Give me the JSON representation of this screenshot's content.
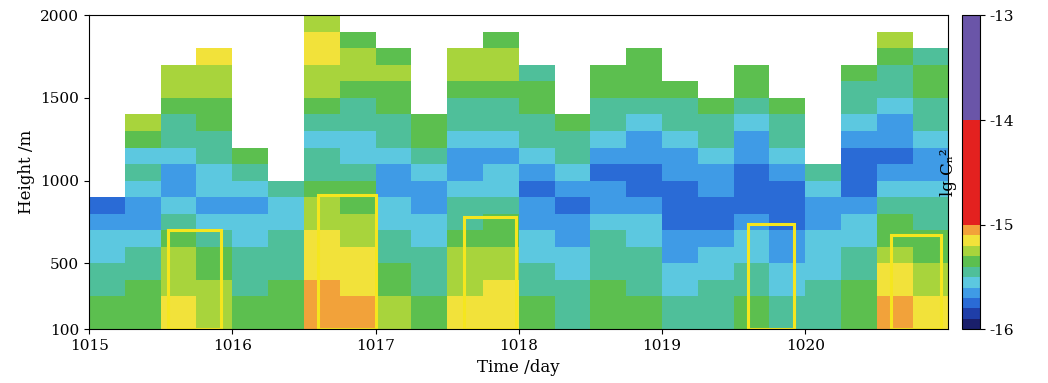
{
  "chart_data": {
    "type": "heatmap",
    "xlabel": "Time /day",
    "ylabel": "Height /m",
    "xlim": [
      1015,
      1021
    ],
    "ylim": [
      100,
      2000
    ],
    "xticks": [
      1015,
      1016,
      1017,
      1018,
      1019,
      1020
    ],
    "yticks": [
      100,
      500,
      1000,
      1500,
      2000
    ],
    "colorbar_label": "lg Cₙ²",
    "clim": [
      -16,
      -13
    ],
    "colorbar_ticks": [
      -16,
      -15,
      -14,
      -13
    ],
    "x_edges": [
      1015,
      1015.25,
      1015.5,
      1015.75,
      1016,
      1016.25,
      1016.5,
      1016.75,
      1017,
      1017.25,
      1017.5,
      1017.75,
      1018,
      1018.25,
      1018.5,
      1018.75,
      1019,
      1019.25,
      1019.5,
      1019.75,
      1020,
      1020.25,
      1020.5,
      1020.75,
      1021
    ],
    "y_edges": [
      100,
      200,
      300,
      400,
      500,
      600,
      700,
      800,
      900,
      1000,
      1100,
      1200,
      1300,
      1400,
      1500,
      1600,
      1700,
      1800,
      1900,
      2000
    ],
    "cells": [
      [
        -15.4,
        -15.4,
        -15.5,
        -15.5,
        -15.6,
        -15.6,
        -15.7,
        -15.8,
        null,
        null,
        null,
        null,
        null,
        null,
        null,
        null,
        null,
        null,
        null
      ],
      [
        -15.4,
        -15.4,
        -15.4,
        -15.5,
        -15.5,
        -15.6,
        -15.7,
        -15.7,
        -15.6,
        -15.5,
        -15.6,
        -15.4,
        -15.3,
        null,
        null,
        null,
        null,
        null,
        null
      ],
      [
        -15.2,
        -15.2,
        -15.3,
        -15.3,
        -15.3,
        -15.4,
        -15.5,
        -15.6,
        -15.7,
        -15.7,
        -15.6,
        -15.5,
        -15.5,
        -15.4,
        -15.3,
        -15.3,
        null,
        null,
        null
      ],
      [
        -15.3,
        -15.3,
        -15.3,
        -15.4,
        -15.4,
        -15.5,
        -15.6,
        -15.7,
        -15.6,
        -15.6,
        -15.5,
        -15.5,
        -15.4,
        -15.4,
        -15.3,
        -15.3,
        -15.2,
        null,
        null
      ],
      [
        -15.4,
        -15.4,
        -15.5,
        -15.5,
        -15.5,
        -15.6,
        -15.6,
        -15.7,
        -15.6,
        -15.5,
        -15.4,
        null,
        null,
        null,
        null,
        null,
        null,
        null,
        null
      ],
      [
        -15.4,
        -15.4,
        -15.4,
        -15.5,
        -15.5,
        -15.5,
        -15.6,
        -15.6,
        -15.5,
        null,
        null,
        null,
        null,
        null,
        null,
        null,
        null,
        null,
        null
      ],
      [
        -15.1,
        -15.1,
        -15.1,
        -15.2,
        -15.2,
        -15.2,
        -15.3,
        -15.3,
        -15.4,
        -15.5,
        -15.5,
        -15.6,
        -15.5,
        -15.4,
        -15.3,
        -15.3,
        -15.2,
        -15.2,
        -15.3
      ],
      [
        -15.1,
        -15.1,
        -15.2,
        -15.2,
        -15.2,
        -15.3,
        -15.3,
        -15.4,
        -15.4,
        -15.5,
        -15.6,
        -15.6,
        -15.5,
        -15.5,
        -15.4,
        -15.3,
        -15.3,
        -15.4,
        null
      ],
      [
        -15.3,
        -15.3,
        -15.4,
        -15.4,
        -15.5,
        -15.5,
        -15.6,
        -15.6,
        -15.7,
        -15.7,
        -15.6,
        -15.5,
        -15.5,
        -15.4,
        -15.4,
        -15.3,
        -15.4,
        null,
        null
      ],
      [
        -15.4,
        -15.4,
        -15.5,
        -15.5,
        -15.5,
        -15.6,
        -15.6,
        -15.7,
        -15.7,
        -15.6,
        -15.5,
        -15.4,
        -15.4,
        null,
        null,
        null,
        null,
        null,
        null
      ],
      [
        -15.2,
        -15.2,
        -15.3,
        -15.3,
        -15.3,
        -15.4,
        -15.5,
        -15.5,
        -15.6,
        -15.7,
        -15.7,
        -15.6,
        -15.5,
        -15.5,
        -15.4,
        -15.3,
        -15.3,
        null,
        null
      ],
      [
        -15.2,
        -15.2,
        -15.2,
        -15.3,
        -15.3,
        -15.4,
        -15.4,
        -15.5,
        -15.6,
        -15.6,
        -15.7,
        -15.6,
        -15.5,
        -15.5,
        -15.4,
        -15.3,
        -15.3,
        -15.4,
        null
      ],
      [
        -15.4,
        -15.4,
        -15.5,
        -15.5,
        -15.6,
        -15.6,
        -15.7,
        -15.7,
        -15.8,
        -15.7,
        -15.6,
        -15.5,
        -15.5,
        -15.4,
        -15.4,
        -15.5,
        null,
        null,
        null
      ],
      [
        -15.5,
        -15.5,
        -15.5,
        -15.6,
        -15.6,
        -15.7,
        -15.7,
        -15.8,
        -15.7,
        -15.6,
        -15.5,
        -15.5,
        -15.4,
        null,
        null,
        null,
        null,
        null,
        null
      ],
      [
        -15.4,
        -15.4,
        -15.4,
        -15.5,
        -15.5,
        -15.5,
        -15.6,
        -15.7,
        -15.7,
        -15.8,
        -15.7,
        -15.6,
        -15.5,
        -15.5,
        -15.4,
        -15.4,
        null,
        null,
        null
      ],
      [
        -15.4,
        -15.4,
        -15.5,
        -15.5,
        -15.5,
        -15.6,
        -15.6,
        -15.7,
        -15.8,
        -15.8,
        -15.7,
        -15.7,
        -15.6,
        -15.5,
        -15.4,
        -15.4,
        -15.4,
        null,
        null
      ],
      [
        -15.5,
        -15.5,
        -15.6,
        -15.6,
        -15.7,
        -15.7,
        -15.8,
        -15.8,
        -15.8,
        -15.7,
        -15.7,
        -15.6,
        -15.5,
        -15.5,
        -15.4,
        null,
        null,
        null,
        null
      ],
      [
        -15.5,
        -15.5,
        -15.5,
        -15.6,
        -15.6,
        -15.7,
        -15.8,
        -15.8,
        -15.7,
        -15.7,
        -15.6,
        -15.5,
        -15.5,
        -15.4,
        null,
        null,
        null,
        null,
        null
      ],
      [
        -15.4,
        -15.4,
        -15.5,
        -15.5,
        -15.6,
        -15.6,
        -15.7,
        -15.8,
        -15.8,
        -15.8,
        -15.7,
        -15.7,
        -15.6,
        -15.5,
        -15.4,
        -15.4,
        null,
        null,
        null
      ],
      [
        -15.5,
        -15.5,
        -15.6,
        -15.6,
        -15.7,
        -15.7,
        -15.8,
        -15.8,
        -15.8,
        -15.7,
        -15.6,
        -15.5,
        -15.5,
        -15.4,
        null,
        null,
        null,
        null,
        null
      ],
      [
        -15.5,
        -15.5,
        -15.5,
        -15.6,
        -15.6,
        -15.6,
        -15.7,
        -15.7,
        -15.6,
        -15.5,
        null,
        null,
        null,
        null,
        null,
        null,
        null,
        null,
        null
      ],
      [
        -15.4,
        -15.4,
        -15.4,
        -15.5,
        -15.5,
        -15.6,
        -15.6,
        -15.7,
        -15.8,
        -15.8,
        -15.8,
        -15.7,
        -15.6,
        -15.5,
        -15.5,
        -15.4,
        null,
        null,
        null
      ],
      [
        -15.1,
        -15.1,
        -15.2,
        -15.2,
        -15.3,
        -15.4,
        -15.4,
        -15.5,
        -15.6,
        -15.7,
        -15.8,
        -15.7,
        -15.7,
        -15.6,
        -15.5,
        -15.5,
        -15.4,
        -15.3,
        null
      ],
      [
        -15.2,
        -15.2,
        -15.3,
        -15.3,
        -15.4,
        -15.4,
        -15.5,
        -15.5,
        -15.6,
        -15.7,
        -15.7,
        -15.6,
        -15.5,
        -15.5,
        -15.4,
        -15.4,
        -15.5,
        null,
        null
      ]
    ],
    "boxes": [
      {
        "x": [
          1015.55,
          1015.92
        ],
        "y": [
          100,
          700
        ]
      },
      {
        "x": [
          1016.6,
          1017.0
        ],
        "y": [
          100,
          910
        ]
      },
      {
        "x": [
          1017.62,
          1017.98
        ],
        "y": [
          100,
          780
        ]
      },
      {
        "x": [
          1019.6,
          1019.92
        ],
        "y": [
          100,
          740
        ]
      },
      {
        "x": [
          1020.6,
          1020.95
        ],
        "y": [
          100,
          670
        ]
      }
    ]
  }
}
